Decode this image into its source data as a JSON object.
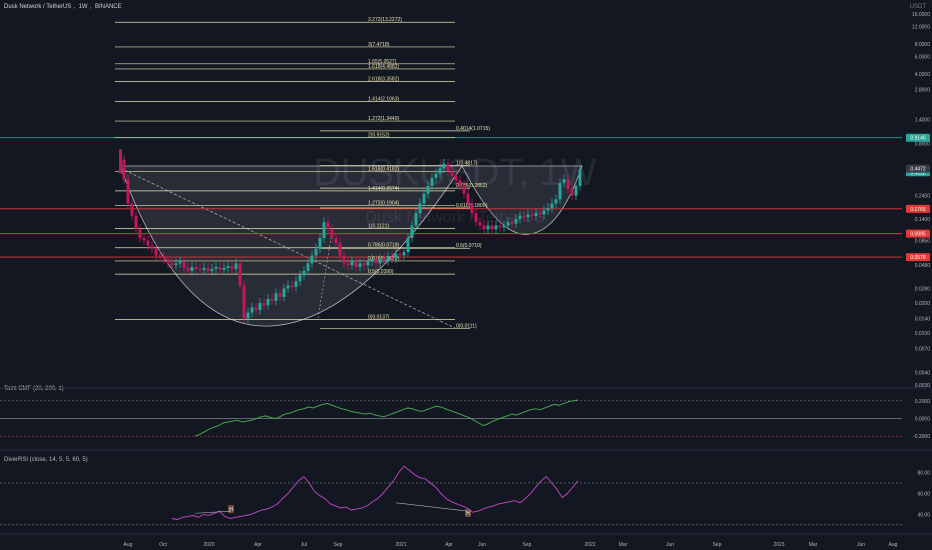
{
  "header": {
    "symbol_name": "Dusk Network / TetherUS",
    "interval": "1W",
    "exchange": "BINANCE",
    "currency": "USDT"
  },
  "watermark": {
    "ticker": "DUSKUSDT, 1W",
    "name": "Dusk Network / TetherUS"
  },
  "colors": {
    "background": "#131722",
    "up": "#26a69a",
    "down": "#c2185b",
    "fib_line": "#e8e3b0",
    "support_red": "#e53935",
    "resistance_green": "#26a69a",
    "cmf": "#4caf50",
    "rsi": "#c548c5"
  },
  "chart_data": [
    {
      "type": "candlestick",
      "name": "price",
      "y_axis": {
        "scale": "log",
        "ticks": [
          "16.0000",
          "12.0000",
          "8.0000",
          "6.0000",
          "4.0000",
          "2.8000",
          "1.4000",
          "0.8000",
          "0.4000",
          "0.2400",
          "0.1400",
          "0.0850",
          "0.0480",
          "0.0280",
          "0.0200",
          "0.0140",
          "0.0100",
          "0.0070",
          "0.0040",
          "0.0030"
        ]
      },
      "x_axis": {
        "ticks": [
          "Aug",
          "Oct",
          "2020",
          "Apr",
          "Jul",
          "Sep",
          "2021",
          "Apr",
          "Jun",
          "Sep",
          "2022",
          "Mar",
          "Jun",
          "Sep",
          "2023",
          "Mar",
          "Jun",
          "Aug"
        ]
      },
      "price_labels": [
        {
          "value": "0.9146",
          "kind": "green"
        },
        {
          "value": "0.4112",
          "kind": "current"
        },
        {
          "value": "0.4472",
          "kind": "dark"
        },
        {
          "value": "0.1765",
          "kind": "red"
        },
        {
          "value": "0.0995",
          "kind": "red"
        },
        {
          "value": "0.0578",
          "kind": "red"
        }
      ],
      "horizontal_levels": [
        {
          "price": 0.9146,
          "kind": "green"
        },
        {
          "price": 0.1765,
          "kind": "red"
        },
        {
          "price": 0.0995,
          "kind": "red"
        },
        {
          "price": 0.0578,
          "kind": "red"
        }
      ],
      "fib_set_1": [
        {
          "label": "3.272(13.2272)",
          "price": 13.2272
        },
        {
          "label": "3(7.4718)",
          "price": 7.4718
        },
        {
          "label": "1.65(5.0527)",
          "price": 5.0527
        },
        {
          "label": "1.618(4.4882)",
          "price": 4.4882
        },
        {
          "label": "2.618(3.3582)",
          "price": 3.3582
        },
        {
          "label": "1.414(2.1063)",
          "price": 2.1063
        },
        {
          "label": "1.272(1.3440)",
          "price": 1.344
        },
        {
          "label": "2(0.9152)",
          "price": 0.9152
        },
        {
          "label": "1.618(0.4182)",
          "price": 0.4182
        },
        {
          "label": "1.414(0.2674)",
          "price": 0.2674
        },
        {
          "label": "1.272(0.1904)",
          "price": 0.1904
        },
        {
          "label": "1(0.1121)",
          "price": 0.1121
        },
        {
          "label": "0.786(0.0718)",
          "price": 0.0718
        },
        {
          "label": "0.618(0.0529)",
          "price": 0.0529
        },
        {
          "label": "0.5(0.0390)",
          "price": 0.039
        },
        {
          "label": "0(0.0137)",
          "price": 0.0137
        }
      ],
      "fib_set_2": [
        {
          "label": "0.4014(1.0715)",
          "price": 1.0715
        },
        {
          "label": "1(0.4817)",
          "price": 0.4817
        },
        {
          "label": "0.786(0.2852)",
          "price": 0.2852
        },
        {
          "label": "0.618(0.1800)",
          "price": 0.18
        },
        {
          "label": "0.5(0.0710)",
          "price": 0.071
        },
        {
          "label": "0(0.0111)",
          "price": 0.0111
        }
      ],
      "markers": [
        "H",
        "H"
      ]
    },
    {
      "type": "line",
      "name": "cmf",
      "legend": "Taint CMF (20, 200, 1)",
      "y_ticks": [
        "0.2000",
        "0.0000",
        "-0.2000"
      ],
      "ylim": [
        -0.3,
        0.3
      ],
      "values": [
        -0.2,
        -0.18,
        -0.15,
        -0.12,
        -0.1,
        -0.08,
        -0.05,
        -0.04,
        -0.03,
        -0.02,
        -0.04,
        -0.03,
        -0.02,
        0.0,
        0.02,
        0.03,
        0.01,
        0.0,
        0.02,
        0.05,
        0.06,
        0.08,
        0.1,
        0.11,
        0.13,
        0.12,
        0.14,
        0.16,
        0.17,
        0.15,
        0.13,
        0.11,
        0.1,
        0.08,
        0.07,
        0.06,
        0.05,
        0.06,
        0.04,
        0.03,
        0.02,
        0.04,
        0.06,
        0.08,
        0.1,
        0.12,
        0.11,
        0.09,
        0.08,
        0.1,
        0.12,
        0.14,
        0.13,
        0.11,
        0.09,
        0.07,
        0.05,
        0.03,
        0.01,
        -0.02,
        -0.05,
        -0.08,
        -0.06,
        -0.03,
        -0.01,
        0.01,
        0.03,
        0.05,
        0.04,
        0.06,
        0.08,
        0.1,
        0.11,
        0.1,
        0.12,
        0.14,
        0.16,
        0.15,
        0.17,
        0.19,
        0.2,
        0.21
      ]
    },
    {
      "type": "line",
      "name": "rsi",
      "legend": "DiverRSI (close, 14, 5, 5, 60, 5)",
      "y_ticks": [
        "80.00",
        "60.00",
        "40.00"
      ],
      "ylim": [
        25,
        90
      ],
      "values": [
        36,
        35,
        37,
        38,
        39,
        37,
        40,
        39,
        41,
        43,
        38,
        36,
        37,
        38,
        39,
        40,
        42,
        44,
        45,
        47,
        50,
        55,
        60,
        66,
        72,
        76,
        70,
        62,
        58,
        55,
        50,
        48,
        46,
        47,
        44,
        45,
        46,
        48,
        52,
        55,
        60,
        66,
        72,
        80,
        86,
        82,
        78,
        75,
        74,
        70,
        66,
        60,
        55,
        52,
        50,
        48,
        46,
        42,
        43,
        45,
        47,
        48,
        50,
        51,
        52,
        53,
        51,
        55,
        60,
        66,
        72,
        76,
        70,
        64,
        56,
        60,
        66,
        72
      ]
    }
  ]
}
